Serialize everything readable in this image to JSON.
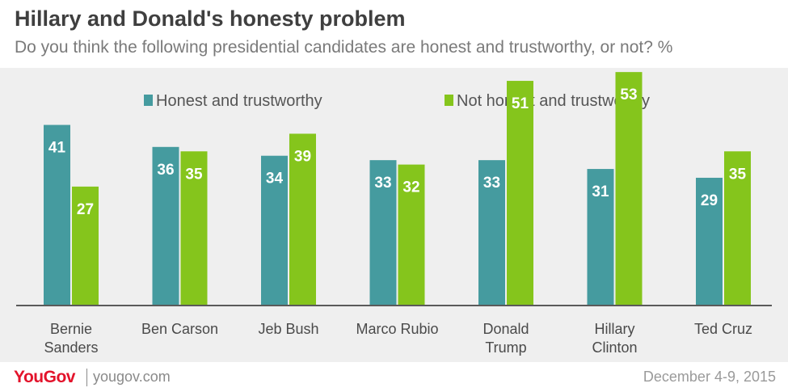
{
  "header": {
    "title": "Hillary and Donald's honesty problem",
    "subtitle": "Do you think the following presidential candidates are honest and trustworthy, or not? %"
  },
  "footer": {
    "logo": "YouGov",
    "site": "yougov.com",
    "date": "December 4-9, 2015"
  },
  "colors": {
    "honest": "#459b9f",
    "not_honest": "#85c51c",
    "background": "#efefef"
  },
  "chart_data": {
    "type": "bar",
    "categories": [
      [
        "Bernie",
        "Sanders"
      ],
      [
        "Ben Carson"
      ],
      [
        "Jeb Bush"
      ],
      [
        "Marco Rubio"
      ],
      [
        "Donald",
        "Trump"
      ],
      [
        "Hillary",
        "Clinton"
      ],
      [
        "Ted Cruz"
      ]
    ],
    "series": [
      {
        "name": "Honest and trustworthy",
        "values": [
          41,
          36,
          34,
          33,
          33,
          31,
          29
        ]
      },
      {
        "name": "Not honest and trustworthy",
        "values": [
          27,
          35,
          39,
          32,
          51,
          53,
          35
        ]
      }
    ],
    "legend": "top",
    "grid": false,
    "ylim": [
      0,
      55
    ]
  }
}
